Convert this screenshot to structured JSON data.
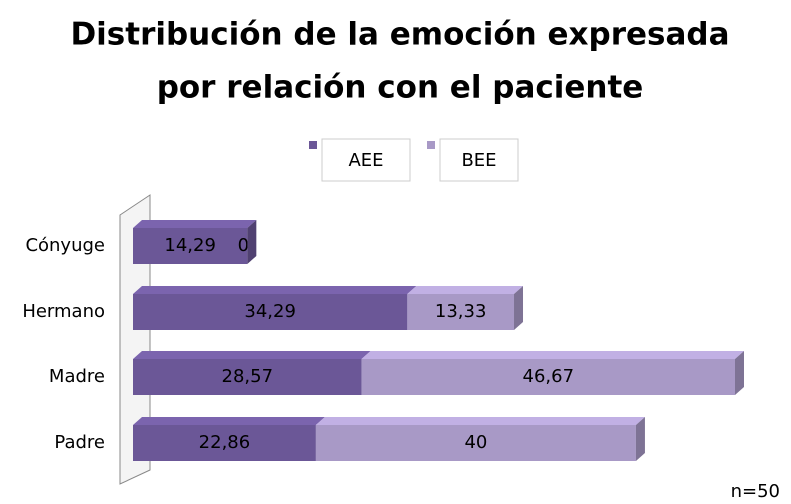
{
  "chart_data": {
    "type": "stacked_barh",
    "title": [
      "Distribución de la emoción expresada",
      "por relación con el paciente"
    ],
    "categories": [
      "Cónyuge",
      "Hermano",
      "Madre",
      "Padre"
    ],
    "series": [
      {
        "name": "AEE",
        "color": "#6b5797",
        "values": [
          14.29,
          34.29,
          28.57,
          22.86
        ],
        "value_labels": [
          "14,29",
          "34,29",
          "28,57",
          "22,86"
        ]
      },
      {
        "name": "BEE",
        "color": "#a899c6",
        "values": [
          0,
          13.33,
          46.67,
          40
        ],
        "value_labels": [
          "0",
          "13,33",
          "46,67",
          "40"
        ]
      }
    ],
    "annotation": "n=50"
  }
}
